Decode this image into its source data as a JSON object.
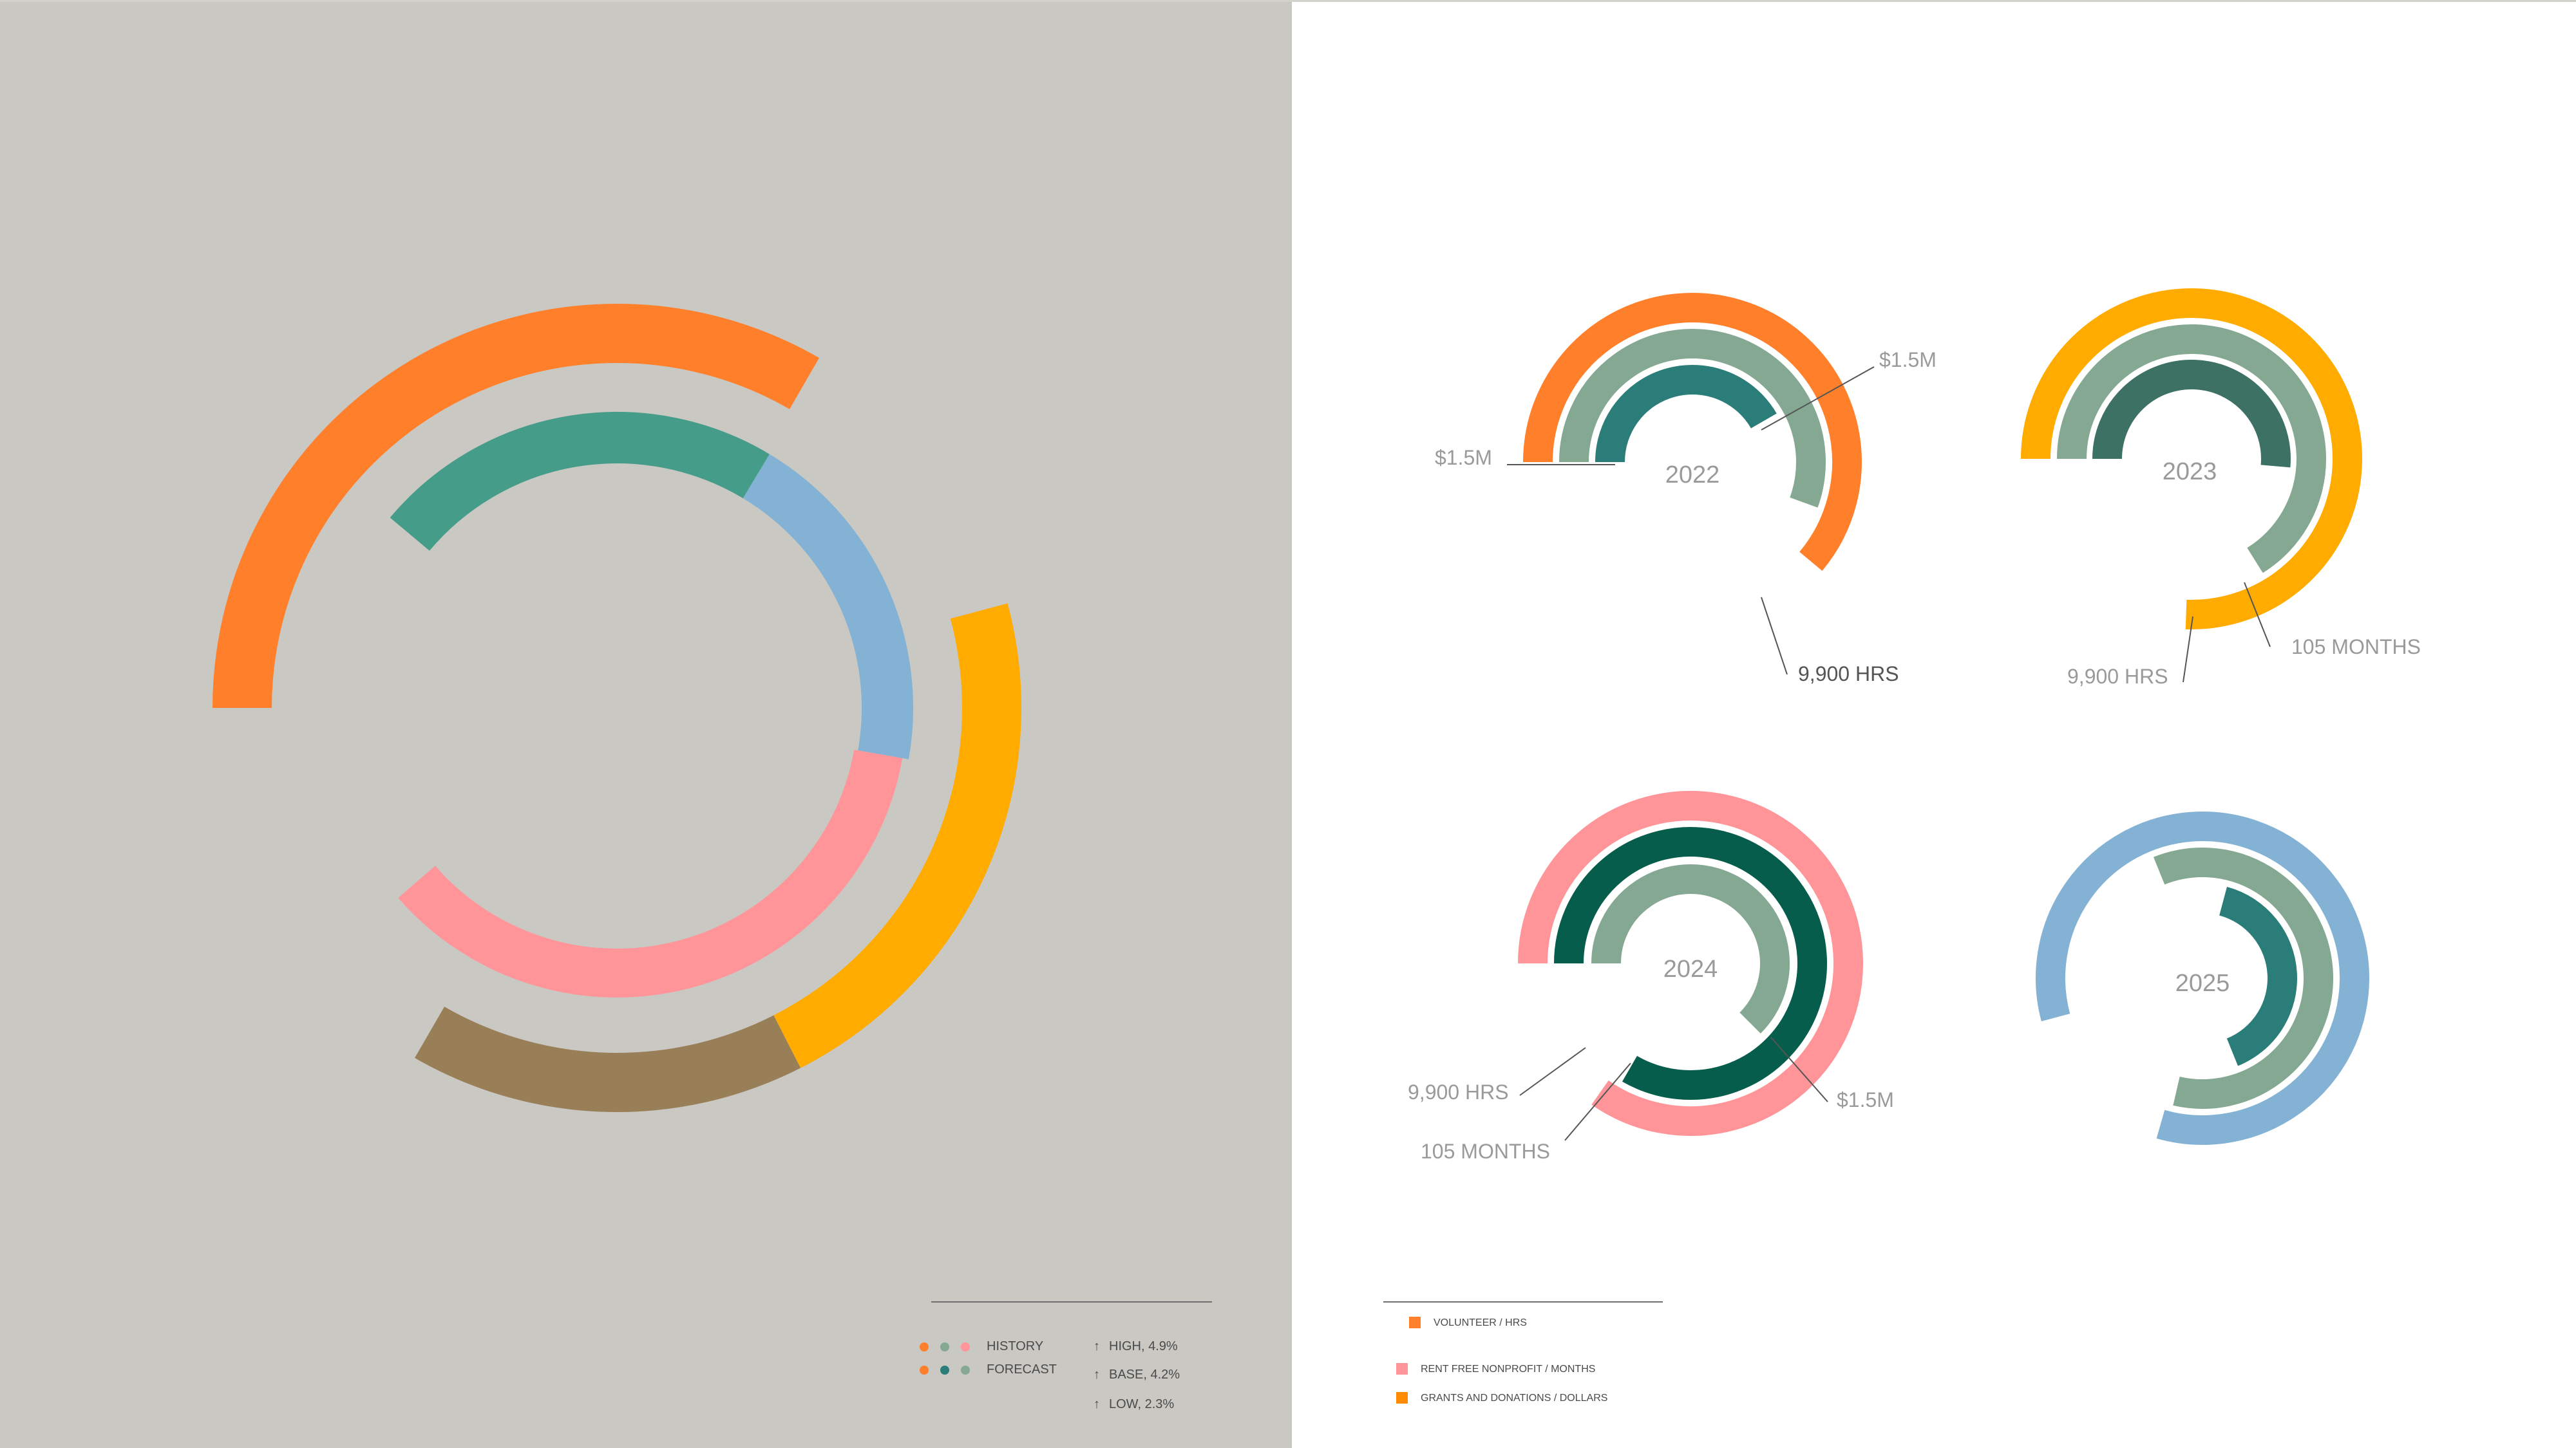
{
  "colors": {
    "left_bg": "#c9c8c3",
    "right_bg": "#ffffff",
    "orange": "#ff7f2a",
    "amber": "#ffab00",
    "brown": "#997f57",
    "teal": "#459c88",
    "blue": "#84b2d4",
    "pink": "#ff9598",
    "sage": "#84a892",
    "dark_teal": "#2a7d79",
    "forest": "#3d7163",
    "dark_green": "#075d4b",
    "text_gray": "#9a9a9a",
    "text_dark": "#555555",
    "guide_line": "#555555"
  },
  "chart_data": [
    {
      "type": "radial-bar",
      "series": [
        {
          "color": "#ff7f2a",
          "start_deg": 180,
          "end_deg": 300
        },
        {
          "color": "#ffab00",
          "start_deg": 345,
          "end_deg": 423
        },
        {
          "color": "#997f57",
          "start_deg": 423,
          "end_deg": 480
        },
        {
          "color": "#459c88",
          "start_deg": 220,
          "end_deg": 301
        },
        {
          "color": "#84b2d4",
          "start_deg": 301,
          "end_deg": 370
        },
        {
          "color": "#ff9598",
          "start_deg": 370,
          "end_deg": 499
        }
      ]
    },
    {
      "type": "radial-bar",
      "title": "2022",
      "annotations": [
        "$1.5M",
        "$1.5M",
        "9,900 HRS"
      ],
      "series": [
        {
          "color": "#ff7f2a",
          "start_deg": 180,
          "end_deg": 400
        },
        {
          "color": "#84a892",
          "start_deg": 180,
          "end_deg": 380
        },
        {
          "color": "#2a7d79",
          "start_deg": 180,
          "end_deg": 330
        }
      ]
    },
    {
      "type": "radial-bar",
      "title": "2023",
      "annotations": [
        "9,900 HRS",
        "105 MONTHS"
      ],
      "series": [
        {
          "color": "#ffab00",
          "start_deg": 180,
          "end_deg": 452
        },
        {
          "color": "#84a892",
          "start_deg": 180,
          "end_deg": 418
        },
        {
          "color": "#3d7163",
          "start_deg": 180,
          "end_deg": 365
        }
      ]
    },
    {
      "type": "radial-bar",
      "title": "2024",
      "annotations": [
        "9,900 HRS",
        "105 MONTHS",
        "$1.5M"
      ],
      "series": [
        {
          "color": "#ff9598",
          "start_deg": 180,
          "end_deg": 485
        },
        {
          "color": "#075d4b",
          "start_deg": 180,
          "end_deg": 480
        },
        {
          "color": "#84a892",
          "start_deg": 180,
          "end_deg": 405
        }
      ]
    },
    {
      "type": "radial-bar",
      "title": "2025",
      "annotations": [],
      "series": [
        {
          "color": "#84b2d4",
          "start_deg": 165,
          "end_deg": 466
        },
        {
          "color": "#84a892",
          "start_deg": 248,
          "end_deg": 463
        },
        {
          "color": "#2a7d79",
          "start_deg": 285,
          "end_deg": 428
        }
      ]
    }
  ],
  "legend_left": {
    "history": "HISTORY",
    "forecast": "FORECAST",
    "history_dot_colors": [
      "#ff7f2a",
      "#84a892",
      "#ff9598"
    ],
    "forecast_dot_colors": [
      "#ff7f2a",
      "#2a7d79",
      "#84a892"
    ],
    "arrow": "↑",
    "high": "HIGH, 4.9%",
    "base": "BASE, 4.2%",
    "low": "LOW, 2.3%"
  },
  "legend_right": {
    "items": [
      {
        "label": "VOLUNTEER / HRS",
        "color": "#ff7f2a"
      },
      {
        "label": "RENT FREE NONPROFIT / MONTHS",
        "color": "#ff9598"
      },
      {
        "label": "GRANTS AND DONATIONS / DOLLARS",
        "color": "#ff8c00"
      }
    ]
  }
}
